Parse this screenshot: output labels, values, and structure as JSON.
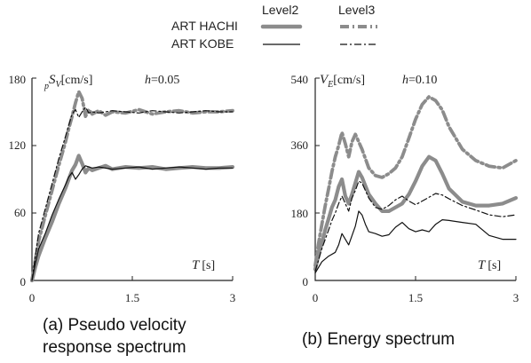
{
  "legend": {
    "level2_label": "Level2",
    "level3_label": "Level3",
    "art_hachi_label": "ART HACHI",
    "art_kobe_label": "ART KOBE"
  },
  "colors": {
    "hachi": "#8c8c8c",
    "kobe": "#111111",
    "axis": "#222222"
  },
  "captions": {
    "a_line1": "(a)  Pseudo  velocity",
    "a_line2": "response spectrum",
    "b": "(b) Energy spectrum"
  },
  "chart_data": [
    {
      "type": "line",
      "ylabel_prefix": "p",
      "ylabel_symbol": "S",
      "ylabel_subscript": "V",
      "ylabel_unit": "[cm/s]",
      "annotation_h": "h",
      "annotation_value": "=0.05",
      "xlabel_symbol": "T",
      "xlabel_unit": "[s]",
      "xlim": [
        0,
        3
      ],
      "ylim": [
        0,
        180
      ],
      "x_ticks": [
        "0",
        "1.5",
        "3"
      ],
      "y_ticks": [
        "0",
        "60",
        "120",
        "180"
      ],
      "series": [
        {
          "key": "hachi_l2",
          "x": [
            0,
            0.05,
            0.1,
            0.2,
            0.3,
            0.4,
            0.5,
            0.55,
            0.6,
            0.65,
            0.7,
            0.75,
            0.8,
            0.85,
            0.9,
            1.0,
            1.1,
            1.2,
            1.4,
            1.6,
            1.8,
            2.0,
            2.2,
            2.4,
            2.6,
            2.8,
            3.0
          ],
          "y": [
            0,
            12,
            22,
            38,
            52,
            68,
            82,
            90,
            98,
            103,
            111,
            104,
            96,
            100,
            98,
            100,
            102,
            99,
            101,
            100,
            101,
            99,
            100,
            101,
            100,
            100,
            101
          ]
        },
        {
          "key": "kobe_l2",
          "x": [
            0,
            0.05,
            0.1,
            0.2,
            0.3,
            0.4,
            0.5,
            0.55,
            0.6,
            0.65,
            0.7,
            0.75,
            0.8,
            0.9,
            1.0,
            1.2,
            1.4,
            1.6,
            1.8,
            2.0,
            2.2,
            2.4,
            2.6,
            2.8,
            3.0
          ],
          "y": [
            0,
            15,
            28,
            42,
            58,
            72,
            85,
            92,
            96,
            90,
            94,
            99,
            102,
            100,
            101,
            99,
            100,
            101,
            99,
            100,
            101,
            100,
            99,
            100,
            100
          ]
        },
        {
          "key": "hachi_l3",
          "x": [
            0,
            0.05,
            0.1,
            0.2,
            0.3,
            0.4,
            0.5,
            0.55,
            0.6,
            0.65,
            0.7,
            0.75,
            0.8,
            0.85,
            0.9,
            1.0,
            1.1,
            1.2,
            1.4,
            1.6,
            1.8,
            2.0,
            2.2,
            2.4,
            2.6,
            2.8,
            3.0
          ],
          "y": [
            0,
            18,
            35,
            58,
            80,
            102,
            123,
            135,
            146,
            158,
            168,
            162,
            146,
            152,
            148,
            151,
            147,
            150,
            149,
            152,
            148,
            150,
            151,
            149,
            150,
            150,
            151
          ]
        },
        {
          "key": "kobe_l3",
          "x": [
            0,
            0.05,
            0.1,
            0.2,
            0.3,
            0.4,
            0.5,
            0.55,
            0.6,
            0.65,
            0.7,
            0.75,
            0.8,
            0.85,
            0.9,
            1.0,
            1.2,
            1.4,
            1.6,
            1.8,
            2.0,
            2.2,
            2.4,
            2.6,
            2.8,
            3.0
          ],
          "y": [
            0,
            22,
            42,
            64,
            86,
            108,
            128,
            138,
            148,
            152,
            145,
            150,
            154,
            149,
            150,
            149,
            151,
            150,
            149,
            151,
            150,
            149,
            150,
            151,
            150,
            150
          ]
        }
      ]
    },
    {
      "type": "line",
      "ylabel_symbol": "V",
      "ylabel_subscript": "E",
      "ylabel_unit": "[cm/s]",
      "annotation_h": "h",
      "annotation_value": "=0.10",
      "xlabel_symbol": "T",
      "xlabel_unit": "[s]",
      "xlim": [
        0,
        3
      ],
      "ylim": [
        0,
        540
      ],
      "x_ticks": [
        "0",
        "1.5",
        "3"
      ],
      "y_ticks": [
        "0",
        "180",
        "360",
        "540"
      ],
      "series": [
        {
          "key": "hachi_l2",
          "x": [
            0,
            0.05,
            0.1,
            0.15,
            0.2,
            0.25,
            0.3,
            0.35,
            0.4,
            0.45,
            0.5,
            0.55,
            0.6,
            0.65,
            0.7,
            0.8,
            0.9,
            1.0,
            1.1,
            1.2,
            1.3,
            1.4,
            1.5,
            1.6,
            1.7,
            1.8,
            1.9,
            2.0,
            2.2,
            2.4,
            2.6,
            2.8,
            3.0
          ],
          "y": [
            30,
            70,
            100,
            135,
            165,
            195,
            215,
            250,
            270,
            225,
            205,
            230,
            260,
            290,
            275,
            230,
            205,
            185,
            185,
            195,
            205,
            230,
            265,
            305,
            330,
            320,
            285,
            245,
            210,
            200,
            200,
            205,
            220
          ]
        },
        {
          "key": "kobe_l2",
          "x": [
            0,
            0.05,
            0.1,
            0.2,
            0.3,
            0.35,
            0.4,
            0.45,
            0.5,
            0.6,
            0.65,
            0.7,
            0.75,
            0.8,
            0.9,
            1.0,
            1.1,
            1.2,
            1.3,
            1.4,
            1.5,
            1.6,
            1.7,
            1.8,
            1.9,
            2.0,
            2.2,
            2.4,
            2.6,
            2.8,
            3.0
          ],
          "y": [
            20,
            35,
            50,
            65,
            75,
            95,
            125,
            110,
            95,
            145,
            185,
            175,
            150,
            130,
            125,
            118,
            122,
            142,
            155,
            138,
            130,
            135,
            130,
            150,
            162,
            160,
            155,
            150,
            120,
            110,
            110
          ]
        },
        {
          "key": "hachi_l3",
          "x": [
            0,
            0.05,
            0.1,
            0.15,
            0.2,
            0.25,
            0.3,
            0.35,
            0.4,
            0.45,
            0.5,
            0.55,
            0.6,
            0.65,
            0.7,
            0.8,
            0.9,
            1.0,
            1.1,
            1.2,
            1.3,
            1.4,
            1.5,
            1.6,
            1.7,
            1.8,
            1.9,
            2.0,
            2.2,
            2.4,
            2.6,
            2.8,
            3.0
          ],
          "y": [
            40,
            100,
            150,
            200,
            245,
            290,
            330,
            360,
            395,
            365,
            330,
            370,
            390,
            370,
            350,
            300,
            280,
            275,
            285,
            300,
            330,
            380,
            430,
            470,
            490,
            480,
            455,
            410,
            350,
            320,
            305,
            300,
            320
          ]
        },
        {
          "key": "kobe_l3",
          "x": [
            0,
            0.05,
            0.1,
            0.15,
            0.2,
            0.25,
            0.3,
            0.35,
            0.4,
            0.45,
            0.5,
            0.55,
            0.6,
            0.65,
            0.7,
            0.8,
            0.9,
            1.0,
            1.1,
            1.2,
            1.3,
            1.4,
            1.5,
            1.6,
            1.7,
            1.8,
            1.9,
            2.0,
            2.2,
            2.4,
            2.6,
            2.8,
            3.0
          ],
          "y": [
            25,
            55,
            85,
            110,
            135,
            160,
            180,
            205,
            225,
            205,
            185,
            220,
            240,
            265,
            260,
            220,
            195,
            190,
            200,
            215,
            225,
            212,
            202,
            212,
            222,
            232,
            228,
            218,
            200,
            188,
            175,
            170,
            175
          ]
        }
      ]
    }
  ]
}
